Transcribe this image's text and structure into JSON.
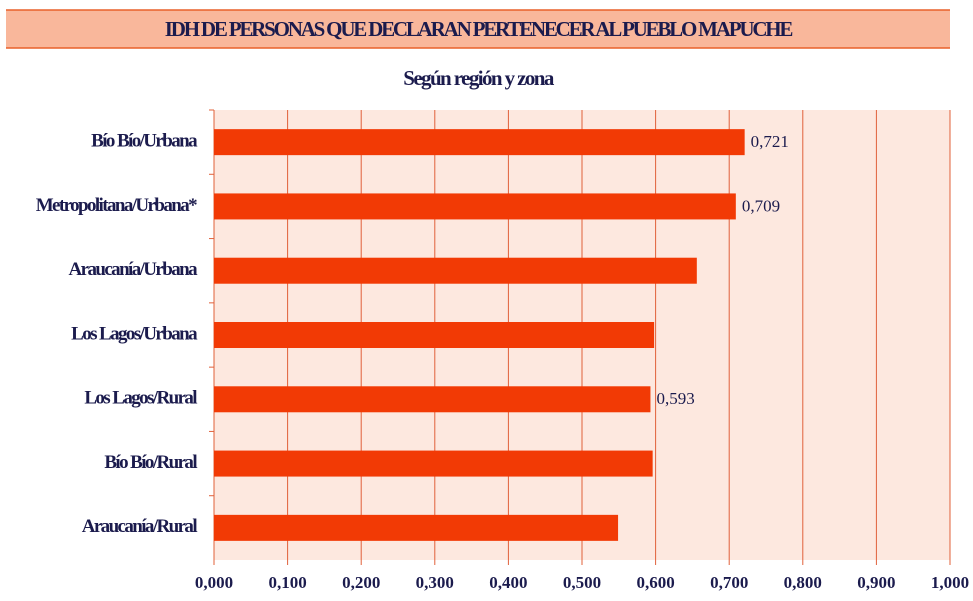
{
  "chart_data": {
    "type": "bar",
    "orientation": "horizontal",
    "title": "IDH DE PERSONAS QUE DECLARAN PERTENECER AL PUEBLO MAPUCHE",
    "subtitle": "Según región y zona",
    "categories": [
      "Bío Bío/Urbana",
      "Metropolitana/Urbana*",
      "Araucanía/Urbana",
      "Los Lagos/Urbana",
      "Los Lagos/Rural",
      "Bío Bío/Rural",
      "Araucanía/Rural"
    ],
    "values": [
      0.721,
      0.709,
      0.656,
      0.598,
      0.593,
      0.596,
      0.549
    ],
    "value_labels": [
      "0,721",
      "0,709",
      null,
      null,
      "0,593",
      null,
      null
    ],
    "color": "#f23a05",
    "xlim": [
      0,
      1
    ],
    "xticks": [
      {
        "value": 0,
        "label": "0,000"
      },
      {
        "value": 0.1,
        "label": "0,100"
      },
      {
        "value": 0.2,
        "label": "0,200"
      },
      {
        "value": 0.3,
        "label": "0,300"
      },
      {
        "value": 0.4,
        "label": "0,400"
      },
      {
        "value": 0.5,
        "label": "0,500"
      },
      {
        "value": 0.6,
        "label": "0,600"
      },
      {
        "value": 0.7,
        "label": "0,700"
      },
      {
        "value": 0.8,
        "label": "0,800"
      },
      {
        "value": 0.9,
        "label": "0,900"
      },
      {
        "value": 1,
        "label": "1,000"
      }
    ],
    "grid": true
  }
}
